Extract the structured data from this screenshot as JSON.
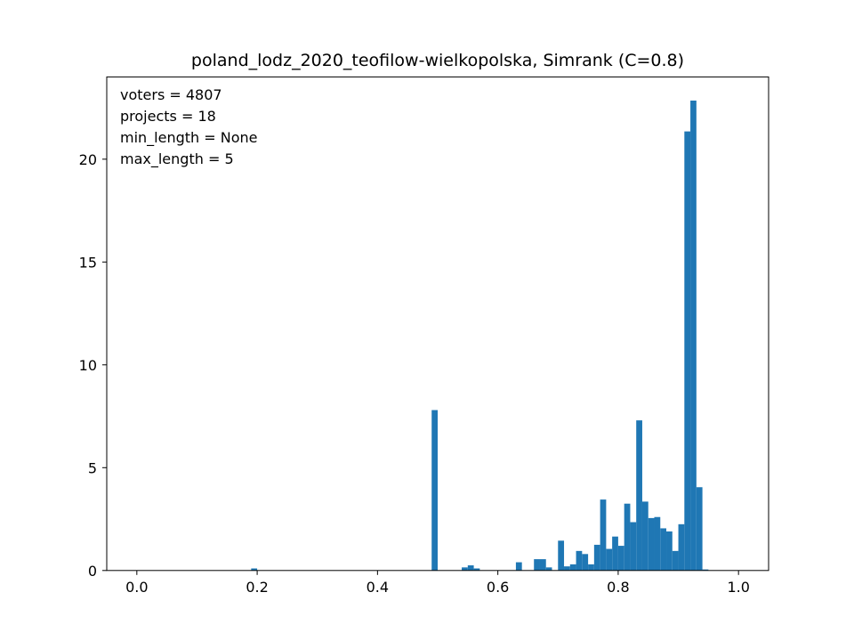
{
  "chart_data": {
    "type": "bar",
    "title": "poland_lodz_2020_teofilow-wielkopolska, Simrank (C=0.8)",
    "xlabel": "",
    "ylabel": "",
    "xlim": [
      -0.05,
      1.05
    ],
    "ylim": [
      0,
      24
    ],
    "grid": false,
    "bar_color": "#1f77b4",
    "x_ticks": [
      0.0,
      0.2,
      0.4,
      0.6,
      0.8,
      1.0
    ],
    "x_tick_labels": [
      "0.0",
      "0.2",
      "0.4",
      "0.6",
      "0.8",
      "1.0"
    ],
    "y_ticks": [
      0,
      5,
      10,
      15,
      20
    ],
    "y_tick_labels": [
      "0",
      "5",
      "10",
      "15",
      "20"
    ],
    "annotations": [
      "voters = 4807",
      "projects = 18",
      "min_length = None",
      "max_length = 5"
    ],
    "bin_width": 0.01,
    "bins": [
      {
        "x": 0.19,
        "value": 0.1
      },
      {
        "x": 0.49,
        "value": 7.8
      },
      {
        "x": 0.54,
        "value": 0.15
      },
      {
        "x": 0.55,
        "value": 0.25
      },
      {
        "x": 0.56,
        "value": 0.1
      },
      {
        "x": 0.63,
        "value": 0.4
      },
      {
        "x": 0.66,
        "value": 0.55
      },
      {
        "x": 0.67,
        "value": 0.55
      },
      {
        "x": 0.68,
        "value": 0.15
      },
      {
        "x": 0.7,
        "value": 1.45
      },
      {
        "x": 0.71,
        "value": 0.2
      },
      {
        "x": 0.72,
        "value": 0.3
      },
      {
        "x": 0.73,
        "value": 0.95
      },
      {
        "x": 0.74,
        "value": 0.8
      },
      {
        "x": 0.75,
        "value": 0.3
      },
      {
        "x": 0.76,
        "value": 1.25
      },
      {
        "x": 0.77,
        "value": 3.45
      },
      {
        "x": 0.78,
        "value": 1.05
      },
      {
        "x": 0.79,
        "value": 1.65
      },
      {
        "x": 0.8,
        "value": 1.2
      },
      {
        "x": 0.81,
        "value": 3.25
      },
      {
        "x": 0.82,
        "value": 2.35
      },
      {
        "x": 0.83,
        "value": 7.3
      },
      {
        "x": 0.84,
        "value": 3.35
      },
      {
        "x": 0.85,
        "value": 2.55
      },
      {
        "x": 0.86,
        "value": 2.6
      },
      {
        "x": 0.87,
        "value": 2.05
      },
      {
        "x": 0.88,
        "value": 1.9
      },
      {
        "x": 0.89,
        "value": 0.95
      },
      {
        "x": 0.9,
        "value": 2.25
      },
      {
        "x": 0.91,
        "value": 21.35
      },
      {
        "x": 0.92,
        "value": 22.85
      },
      {
        "x": 0.93,
        "value": 4.05
      },
      {
        "x": 0.94,
        "value": 0.05
      }
    ]
  }
}
